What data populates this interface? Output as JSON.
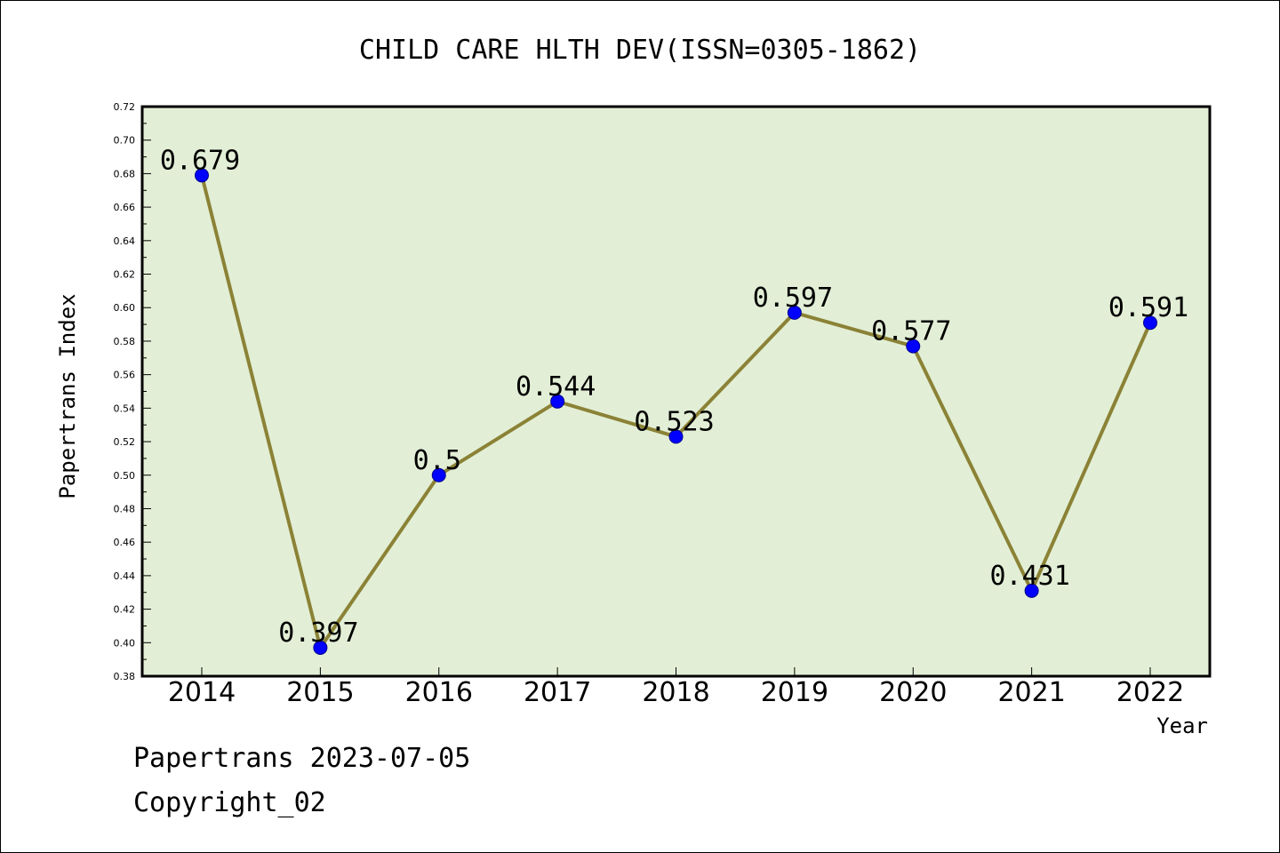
{
  "chart_data": {
    "type": "line",
    "title": "CHILD CARE HLTH DEV(ISSN=0305-1862)",
    "xlabel": "Year",
    "ylabel": "Papertrans Index",
    "categories": [
      "2014",
      "2015",
      "2016",
      "2017",
      "2018",
      "2019",
      "2020",
      "2021",
      "2022"
    ],
    "series": [
      {
        "values": [
          0.679,
          0.397,
          0.5,
          0.544,
          0.523,
          0.597,
          0.577,
          0.431,
          0.591
        ],
        "labels": [
          "0.679",
          "0.397",
          "0.5",
          "0.544",
          "0.523",
          "0.597",
          "0.577",
          "0.431",
          "0.591"
        ]
      }
    ],
    "ylim": [
      0.38,
      0.72
    ],
    "yticks": [
      "0.38",
      "0.40",
      "0.42",
      "0.44",
      "0.46",
      "0.48",
      "0.50",
      "0.52",
      "0.54",
      "0.56",
      "0.58",
      "0.60",
      "0.62",
      "0.64",
      "0.66",
      "0.68",
      "0.70",
      "0.72"
    ],
    "grid": false,
    "colors": {
      "plot_background": "#e2efd6",
      "line": "#8b8236",
      "marker": "#0000ff"
    }
  },
  "footer": {
    "line1": "Papertrans 2023-07-05",
    "line2": "Copyright_02"
  }
}
